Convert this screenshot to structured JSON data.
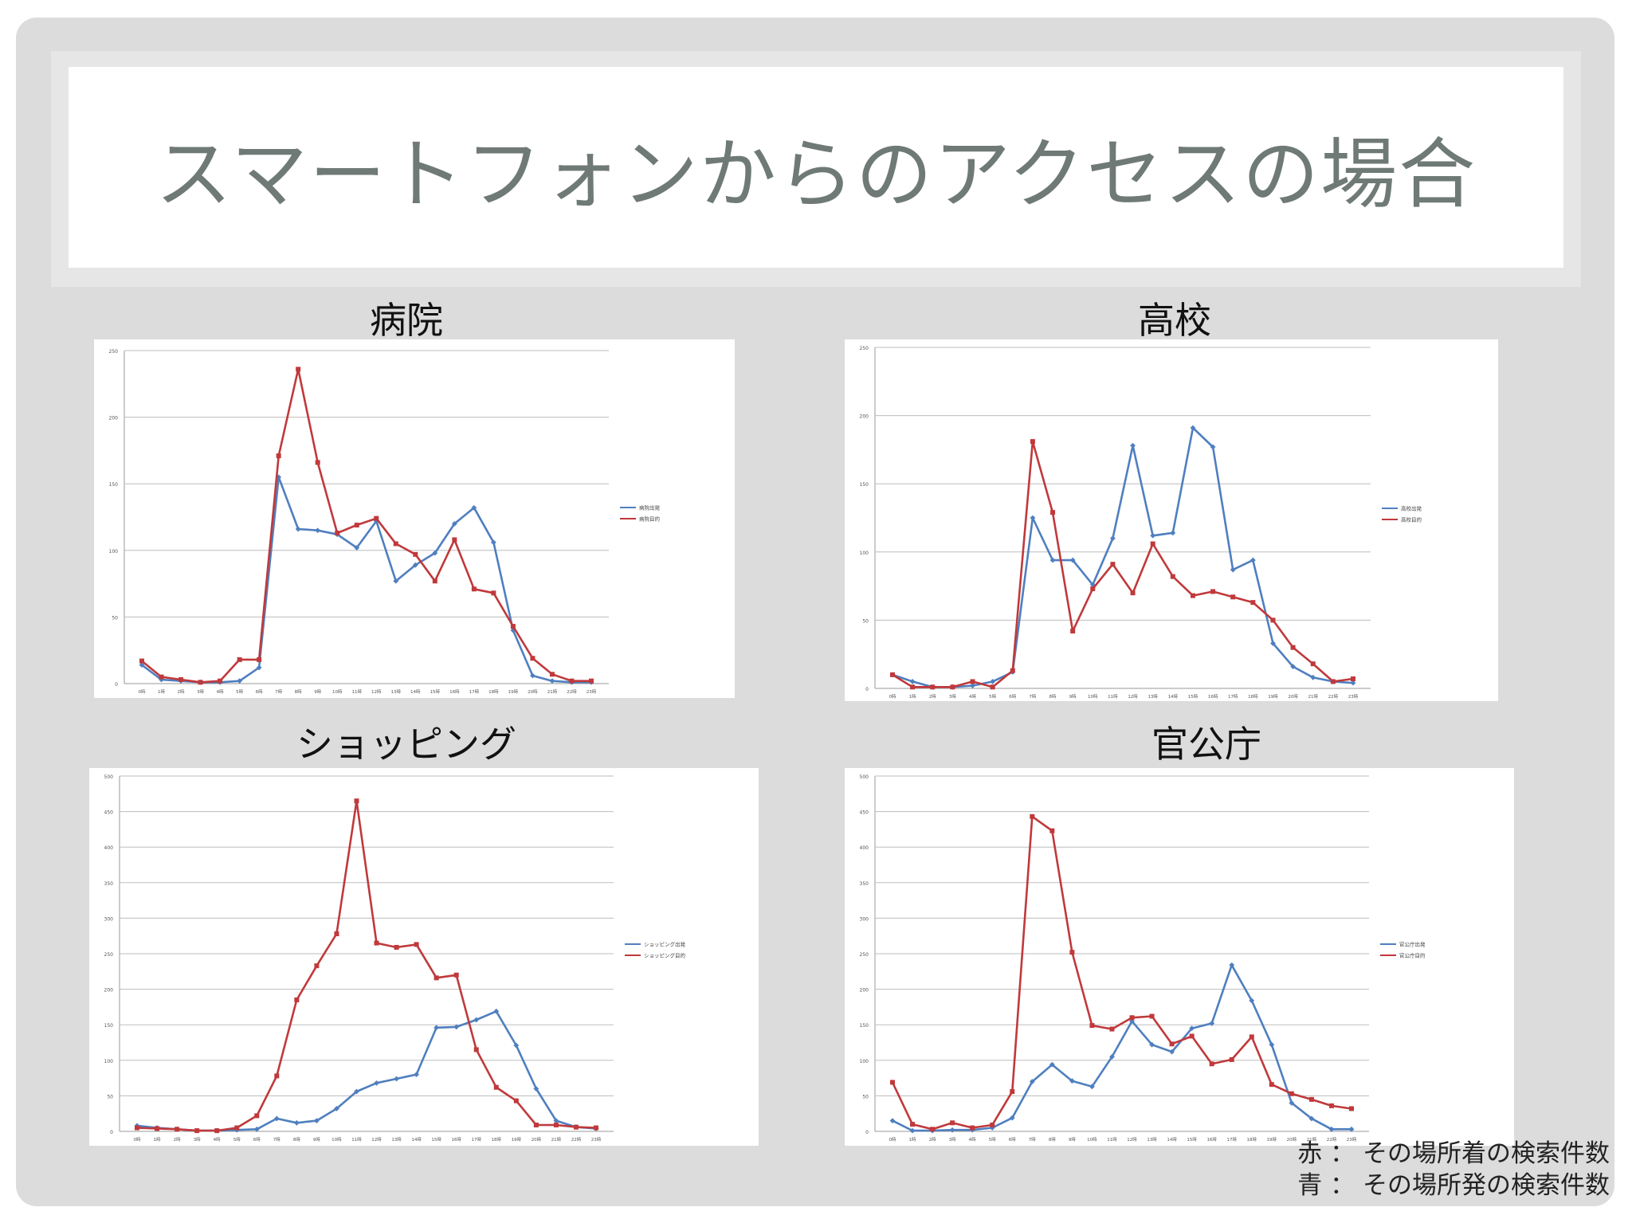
{
  "title": "スマートフォンからのアクセスの場合",
  "legend_note": {
    "red": "赤 ： その場所着の検索件数",
    "blue": "青 ： その場所発の検索件数"
  },
  "colors": {
    "red": "#c0393b",
    "blue": "#4f7fbf"
  },
  "x_labels": [
    "0時",
    "1時",
    "2時",
    "3時",
    "4時",
    "5時",
    "6時",
    "7時",
    "8時",
    "9時",
    "10時",
    "11時",
    "12時",
    "13時",
    "14時",
    "15時",
    "16時",
    "17時",
    "18時",
    "19時",
    "20時",
    "21時",
    "22時",
    "23時"
  ],
  "chart_data": [
    {
      "type": "line",
      "heading": "病院",
      "ylim": [
        0,
        250
      ],
      "yticks": [
        0,
        50,
        100,
        150,
        200,
        250
      ],
      "grid": true,
      "legend_position": "right",
      "series": [
        {
          "name": "病院出発",
          "color": "#4f7fbf",
          "values": [
            14,
            3,
            2,
            1,
            1,
            2,
            12,
            155,
            116,
            115,
            112,
            102,
            122,
            77,
            89,
            98,
            120,
            132,
            106,
            40,
            6,
            2,
            1,
            1
          ]
        },
        {
          "name": "病院目的",
          "color": "#c0393b",
          "values": [
            17,
            5,
            3,
            1,
            2,
            18,
            18,
            171,
            236,
            166,
            113,
            119,
            124,
            105,
            97,
            77,
            108,
            71,
            68,
            43,
            19,
            7,
            2,
            2
          ]
        }
      ]
    },
    {
      "type": "line",
      "heading": "高校",
      "ylim": [
        0,
        250
      ],
      "yticks": [
        0,
        50,
        100,
        150,
        200,
        250
      ],
      "grid": true,
      "legend_position": "right",
      "series": [
        {
          "name": "高校出発",
          "color": "#4f7fbf",
          "values": [
            10,
            5,
            1,
            1,
            2,
            5,
            12,
            125,
            94,
            94,
            76,
            110,
            178,
            112,
            114,
            191,
            177,
            87,
            94,
            33,
            16,
            8,
            5,
            4
          ]
        },
        {
          "name": "高校目的",
          "color": "#c0393b",
          "values": [
            10,
            1,
            1,
            1,
            5,
            1,
            13,
            181,
            129,
            42,
            73,
            91,
            70,
            106,
            82,
            68,
            71,
            67,
            63,
            50,
            30,
            18,
            5,
            7
          ]
        }
      ]
    },
    {
      "type": "line",
      "heading": "ショッピング",
      "ylim": [
        0,
        500
      ],
      "yticks": [
        0,
        50,
        100,
        150,
        200,
        250,
        300,
        350,
        400,
        450,
        500
      ],
      "grid": true,
      "legend_position": "right",
      "series": [
        {
          "name": "ショッピング出発",
          "color": "#4f7fbf",
          "values": [
            8,
            5,
            3,
            1,
            1,
            2,
            3,
            18,
            12,
            15,
            32,
            56,
            68,
            74,
            80,
            146,
            147,
            157,
            169,
            121,
            60,
            15,
            6,
            4
          ]
        },
        {
          "name": "ショッピング目的",
          "color": "#c0393b",
          "values": [
            5,
            4,
            3,
            1,
            1,
            5,
            22,
            78,
            185,
            233,
            278,
            465,
            265,
            259,
            263,
            216,
            220,
            115,
            62,
            43,
            9,
            9,
            6,
            5
          ]
        }
      ]
    },
    {
      "type": "line",
      "heading": "官公庁",
      "ylim": [
        0,
        500
      ],
      "yticks": [
        0,
        50,
        100,
        150,
        200,
        250,
        300,
        350,
        400,
        450,
        500
      ],
      "grid": true,
      "legend_position": "right",
      "series": [
        {
          "name": "官公庁出発",
          "color": "#4f7fbf",
          "values": [
            15,
            1,
            1,
            2,
            2,
            5,
            19,
            70,
            94,
            71,
            63,
            105,
            155,
            122,
            112,
            145,
            152,
            234,
            184,
            122,
            40,
            18,
            3,
            3
          ]
        },
        {
          "name": "官公庁目的",
          "color": "#c0393b",
          "values": [
            69,
            10,
            3,
            12,
            5,
            9,
            56,
            443,
            423,
            252,
            149,
            144,
            160,
            162,
            123,
            134,
            95,
            101,
            133,
            66,
            53,
            45,
            36,
            32
          ]
        }
      ]
    }
  ]
}
